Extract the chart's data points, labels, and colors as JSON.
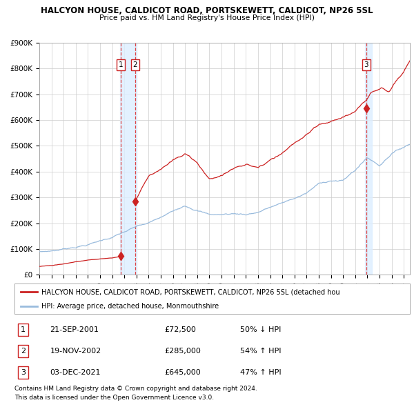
{
  "title1": "HALCYON HOUSE, CALDICOT ROAD, PORTSKEWETT, CALDICOT, NP26 5SL",
  "title2": "Price paid vs. HM Land Registry's House Price Index (HPI)",
  "ylim": [
    0,
    900000
  ],
  "yticks": [
    0,
    100000,
    200000,
    300000,
    400000,
    500000,
    600000,
    700000,
    800000,
    900000
  ],
  "ytick_labels": [
    "£0",
    "£100K",
    "£200K",
    "£300K",
    "£400K",
    "£500K",
    "£600K",
    "£700K",
    "£800K",
    "£900K"
  ],
  "red_line_color": "#cc2222",
  "blue_line_color": "#99bbdd",
  "transaction_dot_color": "#cc2222",
  "dashed_line_color": "#dd4444",
  "shade_color": "#ddeeff",
  "grid_color": "#cccccc",
  "background_color": "#ffffff",
  "transactions": [
    {
      "label": "1",
      "date_x": 2001.72,
      "price": 72500
    },
    {
      "label": "2",
      "date_x": 2002.89,
      "price": 285000
    },
    {
      "label": "3",
      "date_x": 2021.92,
      "price": 645000
    }
  ],
  "legend_red": "HALCYON HOUSE, CALDICOT ROAD, PORTSKEWETT, CALDICOT, NP26 5SL (detached hou",
  "legend_blue": "HPI: Average price, detached house, Monmouthshire",
  "table_rows": [
    {
      "num": "1",
      "date": "21-SEP-2001",
      "price": "£72,500",
      "hpi": "50% ↓ HPI"
    },
    {
      "num": "2",
      "date": "19-NOV-2002",
      "price": "£285,000",
      "hpi": "54% ↑ HPI"
    },
    {
      "num": "3",
      "date": "03-DEC-2021",
      "price": "£645,000",
      "hpi": "47% ↑ HPI"
    }
  ],
  "footer1": "Contains HM Land Registry data © Crown copyright and database right 2024.",
  "footer2": "This data is licensed under the Open Government Licence v3.0.",
  "xmin": 1995.0,
  "xmax": 2025.5
}
